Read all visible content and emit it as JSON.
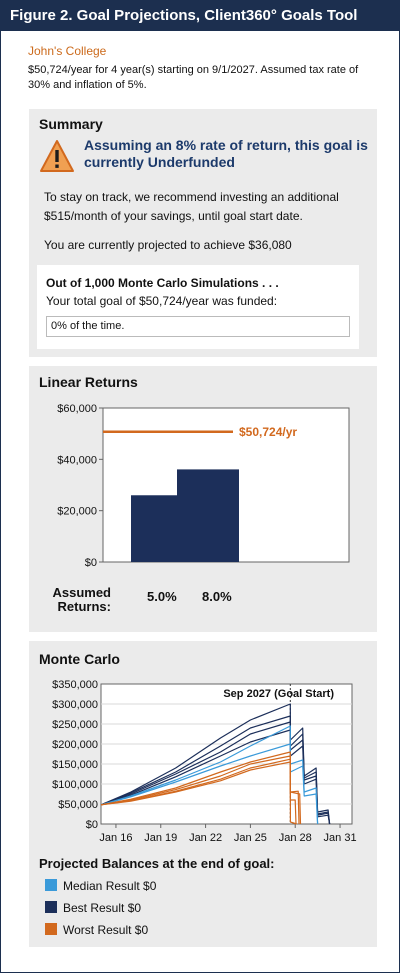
{
  "figure_title": "Figure 2. Goal Projections, Client360° Goals Tool",
  "goal": {
    "name": "John's College",
    "description": "$50,724/year for 4 year(s) starting on 9/1/2027. Assumed tax rate of 30% and inflation of 5%."
  },
  "summary": {
    "title": "Summary",
    "icon": "warning-triangle-icon",
    "headline": "Assuming an 8% rate of return, this goal is currently Underfunded",
    "recommendation": "To stay on track, we recommend investing an additional $515/month of your savings, until goal start date.",
    "projection": "You are currently projected to achieve $36,080",
    "monte_carlo": {
      "heading": "Out of 1,000 Monte Carlo Simulations . . .",
      "subtext": "Your total goal of $50,724/year was funded:",
      "result": "0% of the time."
    }
  },
  "linear_returns": {
    "title": "Linear Returns",
    "assumed_label": "Assumed Returns:",
    "returns": [
      "5.0%",
      "8.0%"
    ]
  },
  "monte_carlo_section": {
    "title": "Monte Carlo",
    "annotation": "Sep 2027 (Goal Start)",
    "projected_heading": "Projected Balances at the end of goal:",
    "legend": [
      {
        "label": "Median Result $0",
        "color": "#3a9ad9"
      },
      {
        "label": "Best Result $0",
        "color": "#1c2f5a"
      },
      {
        "label": "Worst Result $0",
        "color": "#d2691e"
      }
    ]
  },
  "colors": {
    "navy": "#1c2f5a",
    "orange": "#d2691e",
    "light_blue": "#3a9ad9",
    "panel_bg": "#ebebeb"
  },
  "chart_data": [
    {
      "type": "bar",
      "categories": [
        "5.0%",
        "8.0%"
      ],
      "values": [
        26000,
        36080
      ],
      "target": {
        "value": 50724,
        "label": "$50,724/yr"
      },
      "yticks": [
        "$60,000",
        "$40,000",
        "$20,000",
        "$0"
      ],
      "ylim": [
        0,
        60000
      ],
      "grid": false
    },
    {
      "type": "line",
      "annotation": "Sep 2027 (Goal Start)",
      "xticks": [
        "Jan 16",
        "Jan 19",
        "Jan 22",
        "Jan 25",
        "Jan 28",
        "Jan 31"
      ],
      "yticks": [
        "$350,000",
        "$300,000",
        "$250,000",
        "$200,000",
        "$150,000",
        "$100,000",
        "$50,000",
        "$0"
      ],
      "xlim": [
        2015,
        2031.8
      ],
      "ylim": [
        0,
        350000
      ],
      "grid": true,
      "series": [
        {
          "group": "best",
          "points": [
            [
              2015,
              48000
            ],
            [
              2017,
              80000
            ],
            [
              2020,
              140000
            ],
            [
              2023,
              215000
            ],
            [
              2025,
              260000
            ],
            [
              2027.67,
              300000
            ],
            [
              2027.68,
              210000
            ],
            [
              2028.5,
              240000
            ],
            [
              2028.6,
              120000
            ],
            [
              2029.4,
              140000
            ],
            [
              2029.5,
              30000
            ],
            [
              2030.2,
              35000
            ],
            [
              2030.3,
              0
            ]
          ]
        },
        {
          "group": "best",
          "points": [
            [
              2015,
              48000
            ],
            [
              2017,
              78000
            ],
            [
              2020,
              130000
            ],
            [
              2023,
              195000
            ],
            [
              2025,
              240000
            ],
            [
              2027.67,
              270000
            ],
            [
              2027.68,
              195000
            ],
            [
              2028.5,
              225000
            ],
            [
              2028.6,
              115000
            ],
            [
              2029.4,
              130000
            ],
            [
              2029.5,
              25000
            ],
            [
              2030.2,
              30000
            ],
            [
              2030.3,
              0
            ]
          ]
        },
        {
          "group": "best",
          "points": [
            [
              2015,
              48000
            ],
            [
              2017,
              75000
            ],
            [
              2020,
              125000
            ],
            [
              2023,
              180000
            ],
            [
              2025,
              225000
            ],
            [
              2027.67,
              255000
            ],
            [
              2027.68,
              185000
            ],
            [
              2028.5,
              210000
            ],
            [
              2028.6,
              110000
            ],
            [
              2029.4,
              120000
            ],
            [
              2029.5,
              22000
            ],
            [
              2030.2,
              27000
            ],
            [
              2030.3,
              0
            ]
          ]
        },
        {
          "group": "best",
          "points": [
            [
              2015,
              48000
            ],
            [
              2017,
              72000
            ],
            [
              2020,
              118000
            ],
            [
              2023,
              170000
            ],
            [
              2025,
              205000
            ],
            [
              2027.67,
              235000
            ],
            [
              2027.68,
              170000
            ],
            [
              2028.5,
              195000
            ],
            [
              2028.6,
              100000
            ],
            [
              2029.4,
              112000
            ],
            [
              2029.5,
              18000
            ],
            [
              2030.2,
              22000
            ],
            [
              2030.3,
              0
            ]
          ]
        },
        {
          "group": "median",
          "points": [
            [
              2015,
              48000
            ],
            [
              2017,
              70000
            ],
            [
              2020,
              110000
            ],
            [
              2023,
              155000
            ],
            [
              2025,
              195000
            ],
            [
              2027.67,
              245000
            ],
            [
              2027.68,
              150000
            ],
            [
              2028.5,
              160000
            ],
            [
              2028.6,
              80000
            ],
            [
              2029.4,
              90000
            ],
            [
              2029.5,
              0
            ]
          ]
        },
        {
          "group": "median",
          "points": [
            [
              2015,
              48000
            ],
            [
              2017,
              68000
            ],
            [
              2020,
              105000
            ],
            [
              2023,
              145000
            ],
            [
              2025,
              170000
            ],
            [
              2027.67,
              200000
            ],
            [
              2027.68,
              130000
            ],
            [
              2028.5,
              145000
            ],
            [
              2028.6,
              70000
            ],
            [
              2029.4,
              75000
            ],
            [
              2029.5,
              0
            ]
          ]
        },
        {
          "group": "worst",
          "points": [
            [
              2015,
              48000
            ],
            [
              2017,
              62000
            ],
            [
              2020,
              90000
            ],
            [
              2023,
              130000
            ],
            [
              2025,
              155000
            ],
            [
              2027.67,
              180000
            ],
            [
              2027.68,
              5000
            ],
            [
              2028.1,
              0
            ]
          ]
        },
        {
          "group": "worst",
          "points": [
            [
              2015,
              48000
            ],
            [
              2017,
              60000
            ],
            [
              2020,
              86000
            ],
            [
              2023,
              120000
            ],
            [
              2025,
              150000
            ],
            [
              2027.67,
              170000
            ],
            [
              2027.68,
              80000
            ],
            [
              2028.3,
              75000
            ],
            [
              2028.35,
              0
            ]
          ]
        },
        {
          "group": "worst",
          "points": [
            [
              2015,
              48000
            ],
            [
              2017,
              58000
            ],
            [
              2020,
              82000
            ],
            [
              2023,
              112000
            ],
            [
              2025,
              140000
            ],
            [
              2027.67,
              162000
            ],
            [
              2027.68,
              80000
            ],
            [
              2028.2,
              82000
            ],
            [
              2028.25,
              0
            ]
          ]
        },
        {
          "group": "worst",
          "points": [
            [
              2015,
              48000
            ],
            [
              2017,
              57000
            ],
            [
              2020,
              80000
            ],
            [
              2023,
              108000
            ],
            [
              2025,
              135000
            ],
            [
              2027.67,
              155000
            ],
            [
              2027.68,
              60000
            ],
            [
              2028,
              60000
            ],
            [
              2028.05,
              0
            ]
          ]
        }
      ]
    }
  ]
}
